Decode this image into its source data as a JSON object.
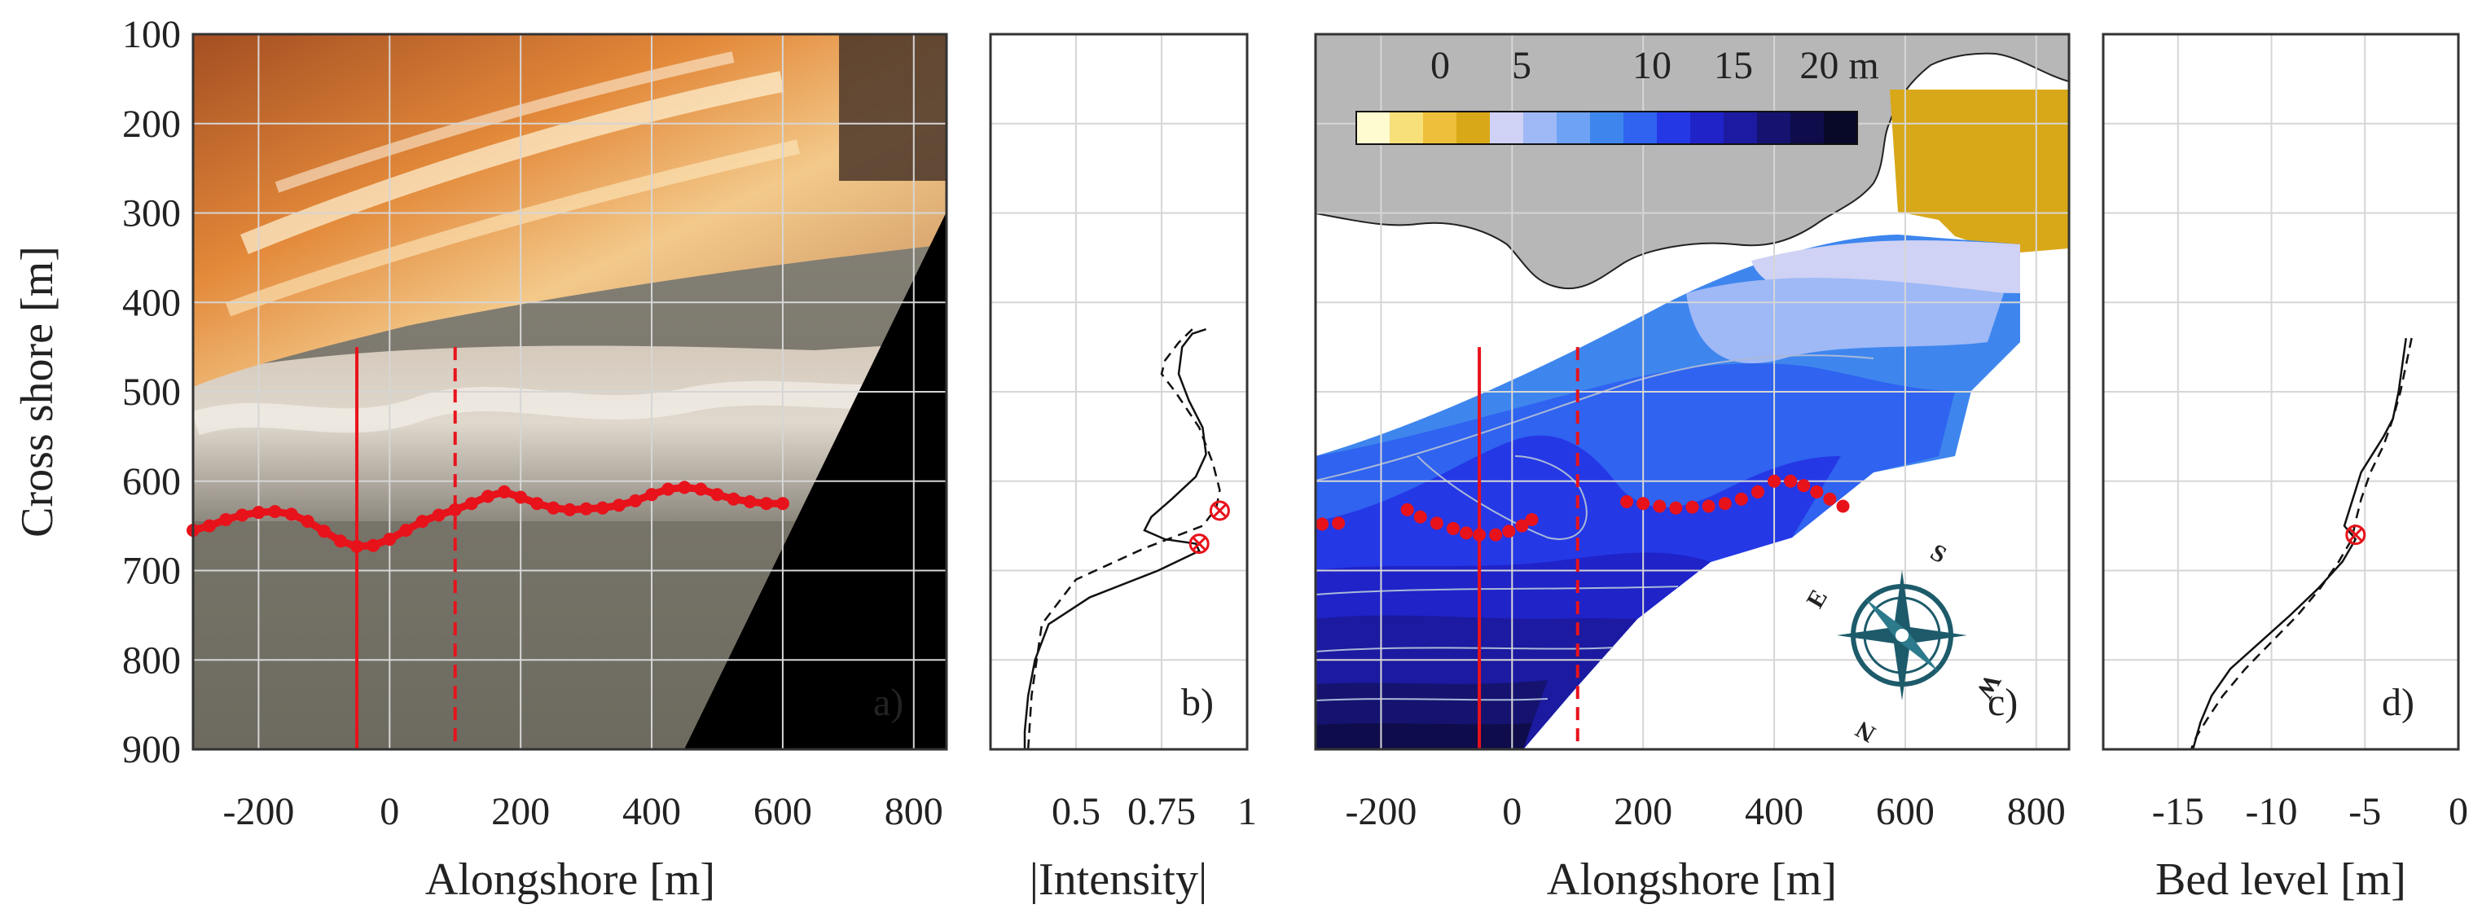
{
  "chart_data": [
    {
      "panel": "a)",
      "type": "image-overlay",
      "xlabel": "Alongshore [m]",
      "ylabel": "Cross shore [m]",
      "xlim": [
        -300,
        850
      ],
      "ylim": [
        900,
        100
      ],
      "xticks": [
        -200,
        0,
        200,
        400,
        600,
        800
      ],
      "yticks": [
        100,
        200,
        300,
        400,
        500,
        600,
        700,
        800,
        900
      ],
      "colors": {
        "line": "#e8121b"
      },
      "transects": [
        {
          "name": "solid-transect",
          "style": "solid",
          "x": -50,
          "y_range": [
            450,
            900
          ]
        },
        {
          "name": "dashed-transect",
          "style": "dashed",
          "x": 100,
          "y_range": [
            450,
            900
          ]
        }
      ],
      "breakpoint_line": {
        "x": [
          -300,
          -275,
          -250,
          -225,
          -200,
          -175,
          -150,
          -125,
          -100,
          -75,
          -50,
          -25,
          0,
          25,
          50,
          75,
          100,
          125,
          150,
          175,
          200,
          225,
          250,
          275,
          300,
          325,
          350,
          375,
          400,
          425,
          450,
          475,
          500,
          525,
          550,
          575,
          600
        ],
        "y": [
          655,
          650,
          643,
          638,
          635,
          634,
          637,
          645,
          656,
          667,
          673,
          672,
          665,
          655,
          645,
          638,
          632,
          625,
          617,
          612,
          618,
          625,
          630,
          632,
          631,
          630,
          627,
          622,
          615,
          609,
          607,
          609,
          615,
          620,
          623,
          625,
          625
        ]
      }
    },
    {
      "panel": "b)",
      "type": "line",
      "xlabel": "|Intensity|",
      "xlim": [
        0.25,
        1
      ],
      "xticks": [
        0.5,
        0.75,
        1
      ],
      "xtick_labels": [
        "0.5",
        "0.75",
        "1"
      ],
      "ylim": [
        900,
        100
      ],
      "series": [
        {
          "name": "solid-profile",
          "style": "solid",
          "x": [
            0.88,
            0.84,
            0.81,
            0.8,
            0.83,
            0.87,
            0.88,
            0.85,
            0.78,
            0.72,
            0.7,
            0.76,
            0.85,
            0.86,
            0.74,
            0.54,
            0.42,
            0.38,
            0.36,
            0.35,
            0.35
          ],
          "y": [
            430,
            435,
            450,
            480,
            510,
            540,
            570,
            595,
            620,
            640,
            655,
            665,
            670,
            678,
            700,
            730,
            760,
            800,
            840,
            880,
            900
          ]
        },
        {
          "name": "dashed-profile",
          "style": "dashed",
          "x": [
            0.84,
            0.8,
            0.76,
            0.75,
            0.79,
            0.86,
            0.9,
            0.92,
            0.91,
            0.87,
            0.7,
            0.5,
            0.4,
            0.37,
            0.36
          ],
          "y": [
            430,
            445,
            465,
            480,
            500,
            540,
            580,
            610,
            630,
            650,
            675,
            710,
            760,
            840,
            900
          ]
        }
      ],
      "markers": [
        {
          "x": 0.92,
          "y": 633
        },
        {
          "x": 0.86,
          "y": 670
        }
      ]
    },
    {
      "panel": "c)",
      "type": "contour-map",
      "xlabel": "Alongshore [m]",
      "xlim": [
        -300,
        850
      ],
      "ylim": [
        900,
        100
      ],
      "xticks": [
        -200,
        0,
        200,
        400,
        600,
        800
      ],
      "colorbar": {
        "ticks": [
          "0",
          "5",
          "10",
          "15",
          "20 m"
        ],
        "colors": [
          "#fffbd0",
          "#f7df7a",
          "#eebf3a",
          "#d9a818",
          "#cfd2f4",
          "#9fb8f6",
          "#6ea2f4",
          "#3e86ee",
          "#2f63f0",
          "#2538e6",
          "#1f23c8",
          "#1b1aa0",
          "#15136f",
          "#0e0c4a",
          "#080828"
        ]
      },
      "transects": [
        {
          "name": "solid-transect",
          "style": "solid",
          "x": -50,
          "y_range": [
            450,
            900
          ]
        },
        {
          "name": "dashed-transect",
          "style": "dashed",
          "x": 100,
          "y_range": [
            450,
            900
          ]
        }
      ],
      "breakpoint_dots": {
        "x": [
          -290,
          -265,
          -160,
          -140,
          -115,
          -90,
          -70,
          -50,
          -25,
          -5,
          15,
          30,
          175,
          200,
          225,
          250,
          275,
          300,
          325,
          350,
          375,
          400,
          425,
          445,
          465,
          485,
          505
        ],
        "y": [
          648,
          647,
          632,
          640,
          647,
          653,
          658,
          660,
          660,
          656,
          650,
          643,
          623,
          625,
          628,
          630,
          629,
          628,
          625,
          620,
          612,
          600,
          600,
          605,
          612,
          620,
          628
        ]
      },
      "compass": {
        "labels": [
          "S",
          "E",
          "W",
          "N"
        ]
      }
    },
    {
      "panel": "d)",
      "type": "line",
      "xlabel": "Bed level [m]",
      "xlim": [
        -19,
        0
      ],
      "xticks": [
        -15,
        -10,
        -5,
        0
      ],
      "ylim": [
        900,
        100
      ],
      "series": [
        {
          "name": "solid-profile",
          "style": "solid",
          "x": [
            -2.8,
            -3.0,
            -3.2,
            -3.5,
            -4.0,
            -4.6,
            -5.2,
            -5.5,
            -5.8,
            -6.1,
            -5.5,
            -6.2,
            -7.5,
            -9.0,
            -10.6,
            -12.2,
            -13.2,
            -13.8,
            -14.2
          ],
          "y": [
            440,
            470,
            500,
            530,
            550,
            570,
            590,
            610,
            630,
            650,
            665,
            690,
            720,
            750,
            780,
            810,
            840,
            870,
            900
          ]
        },
        {
          "name": "dashed-profile",
          "style": "dashed",
          "x": [
            -2.5,
            -2.8,
            -3.1,
            -3.5,
            -4.0,
            -4.7,
            -5.2,
            -5.5,
            -5.7,
            -6.4,
            -7.4,
            -8.6,
            -10.0,
            -11.4,
            -12.6,
            -13.4,
            -14.0,
            -14.3
          ],
          "y": [
            440,
            470,
            500,
            530,
            560,
            590,
            620,
            645,
            665,
            690,
            720,
            750,
            780,
            810,
            840,
            865,
            885,
            900
          ]
        }
      ],
      "markers": [
        {
          "x": -5.5,
          "y": 660
        }
      ]
    }
  ]
}
